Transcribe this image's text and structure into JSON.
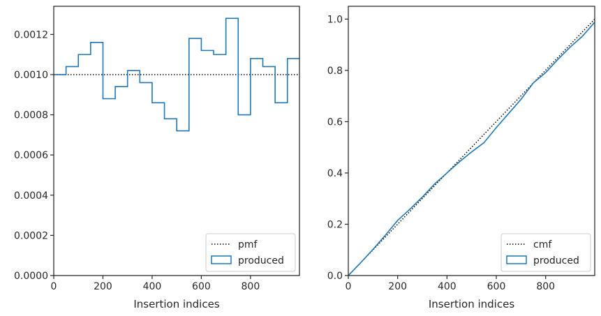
{
  "colors": {
    "reference": "#000000",
    "produced": "#1f77b4",
    "axes": "#262626"
  },
  "chart_data": [
    {
      "type": "line",
      "subtype": "step-histogram",
      "title": "",
      "xlabel": "Insertion indices",
      "ylabel": "",
      "xlim": [
        0,
        999
      ],
      "ylim": [
        0,
        0.00134
      ],
      "xticks": [
        0,
        200,
        400,
        600,
        800
      ],
      "yticks": [
        0.0,
        0.0002,
        0.0004,
        0.0006,
        0.0008,
        0.001,
        0.0012
      ],
      "ytick_labels": [
        "0.0000",
        "0.0002",
        "0.0004",
        "0.0006",
        "0.0008",
        "0.0010",
        "0.0012"
      ],
      "xtick_labels": [
        "0",
        "200",
        "400",
        "600",
        "800"
      ],
      "grid": false,
      "legend_position": "bottom-right",
      "legend": [
        "pmf",
        "produced"
      ],
      "series": [
        {
          "name": "pmf",
          "style": "dotted",
          "x": [
            0,
            999
          ],
          "y": [
            0.001,
            0.001
          ]
        },
        {
          "name": "produced",
          "style": "step",
          "bin_edges": [
            0,
            50,
            100,
            150,
            200,
            250,
            300,
            350,
            400,
            450,
            500,
            550,
            600,
            650,
            700,
            750,
            800,
            850,
            900,
            950,
            999
          ],
          "values": [
            0.001,
            0.00104,
            0.0011,
            0.00116,
            0.00088,
            0.00094,
            0.00102,
            0.00096,
            0.00086,
            0.00078,
            0.00072,
            0.00118,
            0.00112,
            0.0011,
            0.00128,
            0.0008,
            0.00108,
            0.00104,
            0.00086,
            0.00108
          ]
        }
      ]
    },
    {
      "type": "line",
      "subtype": "cumulative",
      "title": "",
      "xlabel": "Insertion indices",
      "ylabel": "",
      "xlim": [
        0,
        999
      ],
      "ylim": [
        0,
        1.05
      ],
      "xticks": [
        0,
        200,
        400,
        600,
        800
      ],
      "yticks": [
        0.0,
        0.2,
        0.4,
        0.6,
        0.8,
        1.0
      ],
      "xtick_labels": [
        "0",
        "200",
        "400",
        "600",
        "800"
      ],
      "ytick_labels": [
        "0.0",
        "0.2",
        "0.4",
        "0.6",
        "0.8",
        "1.0"
      ],
      "grid": false,
      "legend_position": "bottom-right",
      "legend": [
        "cmf",
        "produced"
      ],
      "series": [
        {
          "name": "cmf",
          "style": "dotted",
          "x": [
            0,
            999
          ],
          "y": [
            0,
            1.0
          ]
        },
        {
          "name": "produced",
          "style": "solid",
          "x": [
            0,
            50,
            100,
            150,
            200,
            250,
            300,
            350,
            400,
            450,
            500,
            550,
            600,
            650,
            700,
            750,
            800,
            850,
            900,
            950,
            999
          ],
          "y": [
            0.0,
            0.05,
            0.102,
            0.157,
            0.215,
            0.259,
            0.306,
            0.357,
            0.4,
            0.443,
            0.482,
            0.518,
            0.577,
            0.632,
            0.687,
            0.751,
            0.791,
            0.843,
            0.891,
            0.934,
            0.988
          ]
        }
      ]
    }
  ]
}
